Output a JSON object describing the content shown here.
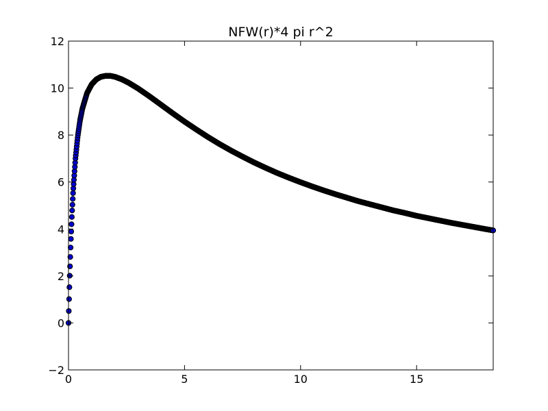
{
  "chart_data": {
    "type": "scatter",
    "title": "NFW(r)*4 pi r^2",
    "xlabel": "",
    "ylabel": "",
    "xlim": [
      0,
      18.3
    ],
    "ylim": [
      -2,
      12
    ],
    "xticks": [
      0,
      5,
      10,
      15
    ],
    "xtick_labels": [
      "0",
      "5",
      "10",
      "15"
    ],
    "yticks": [
      -2,
      0,
      2,
      4,
      6,
      8,
      10,
      12
    ],
    "ytick_labels": [
      "−2",
      "0",
      "2",
      "4",
      "6",
      "8",
      "10",
      "12"
    ],
    "grid": false,
    "legend": "none",
    "marker_face_color": "#0000cc",
    "marker_edge_color": "#000000",
    "series": [
      {
        "x": [
          0.0,
          0.05,
          0.1,
          0.15,
          0.2,
          0.3,
          0.4,
          0.5,
          0.6,
          0.8,
          1.0,
          1.2,
          1.4,
          1.6,
          1.8,
          2.0,
          2.3,
          2.6,
          3.0,
          3.5,
          4.0,
          4.5,
          5.0,
          5.5,
          6.0,
          6.5,
          7.0,
          7.5,
          8.0,
          8.5,
          9.0,
          9.5,
          10.0,
          10.5,
          11.0,
          11.5,
          12.0,
          12.5,
          13.0,
          13.5,
          14.0,
          14.5,
          15.0,
          15.5,
          16.0,
          16.5,
          17.0,
          17.5,
          18.0,
          18.3
        ],
        "y": [
          0.0,
          1.94,
          3.47,
          4.66,
          5.6,
          7.0,
          7.96,
          8.64,
          9.13,
          9.79,
          10.16,
          10.37,
          10.48,
          10.52,
          10.52,
          10.48,
          10.37,
          10.22,
          9.98,
          9.64,
          9.28,
          8.92,
          8.57,
          8.24,
          7.92,
          7.62,
          7.34,
          7.08,
          6.83,
          6.6,
          6.38,
          6.18,
          5.99,
          5.81,
          5.64,
          5.48,
          5.33,
          5.18,
          5.05,
          4.92,
          4.79,
          4.68,
          4.56,
          4.46,
          4.36,
          4.26,
          4.17,
          4.08,
          3.99,
          3.94
        ]
      }
    ]
  }
}
